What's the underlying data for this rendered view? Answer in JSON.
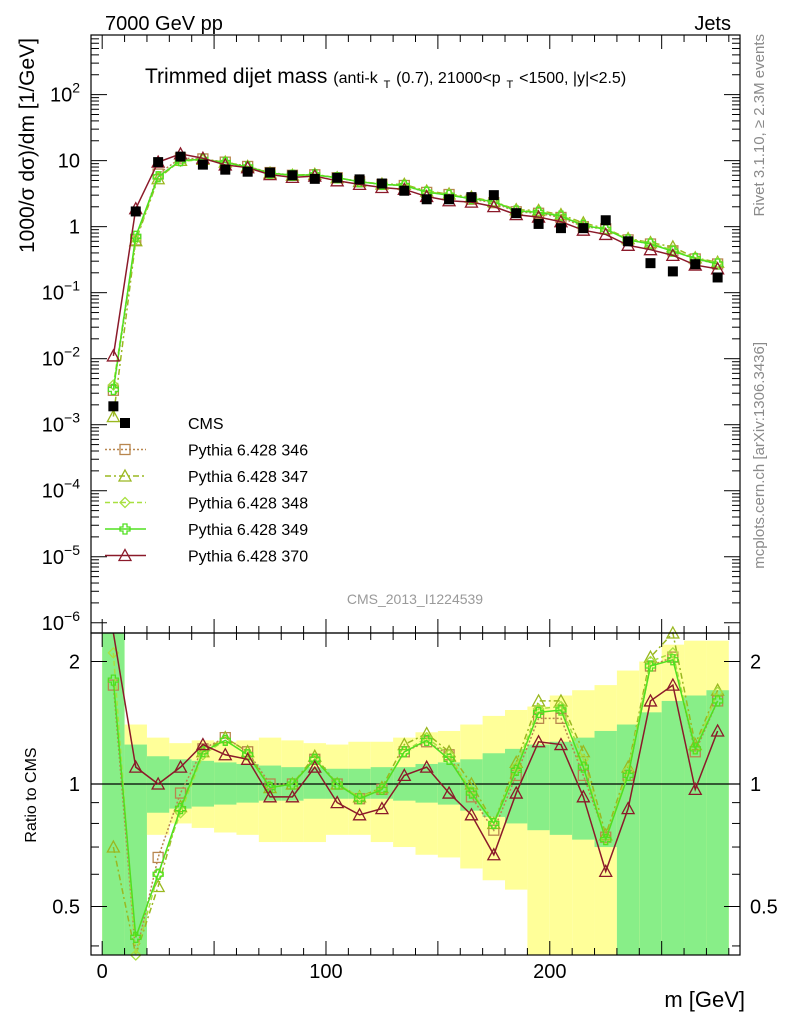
{
  "header": {
    "left": "7000 GeV pp",
    "right": "Jets"
  },
  "plot_title": {
    "main": "Trimmed dijet mass",
    "sub_prefix": "(anti-k",
    "sub_t1": "T",
    "sub_mid": "(0.7), 21000<p",
    "sub_t2": "T",
    "sub_suffix": "<1500, |y|<2.5)"
  },
  "side_labels": {
    "rivet": "Rivet 3.1.10, ≥ 2.3M events",
    "mcplots": "mcplots.cern.ch [arXiv:1306.3436]"
  },
  "watermark": "CMS_2013_I1224539",
  "axes": {
    "ylabel_main": "1000/σ dσ)/dm [1/GeV]",
    "ylabel_ratio": "Ratio to CMS",
    "xlabel": "m [GeV]",
    "x_ticks": [
      "0",
      "100",
      "200"
    ],
    "y_ticks_main": [
      {
        "base": "10",
        "exp": "2"
      },
      {
        "base": "10",
        "exp": ""
      },
      {
        "base": "1",
        "exp": ""
      },
      {
        "base": "10",
        "exp": "−1"
      },
      {
        "base": "10",
        "exp": "−2"
      },
      {
        "base": "10",
        "exp": "−3"
      },
      {
        "base": "10",
        "exp": "−4"
      },
      {
        "base": "10",
        "exp": "−5"
      },
      {
        "base": "10",
        "exp": "−6"
      }
    ],
    "y_ticks_ratio": [
      "2",
      "1",
      "0.5"
    ]
  },
  "legend": [
    {
      "label": "CMS",
      "color": "#000000"
    },
    {
      "label": "Pythia 6.428 346",
      "color": "#b8864e"
    },
    {
      "label": "Pythia 6.428 347",
      "color": "#9ab820"
    },
    {
      "label": "Pythia 6.428 348",
      "color": "#a8e040"
    },
    {
      "label": "Pythia 6.428 349",
      "color": "#50e020"
    },
    {
      "label": "Pythia 6.428 370",
      "color": "#8b1a2a"
    }
  ],
  "chart_data": {
    "type": "line",
    "title": "Trimmed dijet mass",
    "xlabel": "m [GeV]",
    "ylabel": "1000/σ dσ)/dm [1/GeV]",
    "xlim": [
      -5,
      285
    ],
    "ylim_main": [
      7e-07,
      800
    ],
    "ylog_main": true,
    "ylim_ratio": [
      0.38,
      2.35
    ],
    "ylog_ratio": true,
    "x": [
      5,
      15,
      25,
      35,
      45,
      55,
      65,
      75,
      85,
      95,
      105,
      115,
      125,
      135,
      145,
      155,
      165,
      175,
      185,
      195,
      205,
      215,
      225,
      235,
      245,
      255,
      265,
      275
    ],
    "data": [
      0.0019,
      1.7,
      9.5,
      11.5,
      8.7,
      7.3,
      6.8,
      6.6,
      6.0,
      5.3,
      5.5,
      5.2,
      4.5,
      3.5,
      2.6,
      2.6,
      2.8,
      3.0,
      1.6,
      1.1,
      0.95,
      0.95,
      1.25,
      0.6,
      0.28,
      0.21,
      0.27,
      0.17
    ],
    "band_inner": [
      [
        0.38,
        2.35
      ],
      [
        0.38,
        1.25
      ],
      [
        0.85,
        1.17
      ],
      [
        0.87,
        1.15
      ],
      [
        0.88,
        1.14
      ],
      [
        0.89,
        1.13
      ],
      [
        0.9,
        1.12
      ],
      [
        0.91,
        1.11
      ],
      [
        0.91,
        1.1
      ],
      [
        0.92,
        1.1
      ],
      [
        0.92,
        1.09
      ],
      [
        0.92,
        1.09
      ],
      [
        0.92,
        1.1
      ],
      [
        0.91,
        1.1
      ],
      [
        0.9,
        1.12
      ],
      [
        0.89,
        1.13
      ],
      [
        0.86,
        1.15
      ],
      [
        0.83,
        1.19
      ],
      [
        0.8,
        1.22
      ],
      [
        0.77,
        1.25
      ],
      [
        0.75,
        1.27
      ],
      [
        0.73,
        1.3
      ],
      [
        0.7,
        1.35
      ],
      [
        0.38,
        1.4
      ],
      [
        0.38,
        1.5
      ],
      [
        0.38,
        1.6
      ],
      [
        0.38,
        1.65
      ],
      [
        0.38,
        1.7
      ]
    ],
    "band_outer": [
      [
        0.38,
        2.35
      ],
      [
        0.38,
        1.4
      ],
      [
        0.75,
        1.3
      ],
      [
        0.8,
        1.26
      ],
      [
        0.78,
        1.28
      ],
      [
        0.76,
        1.27
      ],
      [
        0.75,
        1.28
      ],
      [
        0.72,
        1.3
      ],
      [
        0.72,
        1.28
      ],
      [
        0.72,
        1.26
      ],
      [
        0.75,
        1.25
      ],
      [
        0.75,
        1.27
      ],
      [
        0.72,
        1.27
      ],
      [
        0.7,
        1.3
      ],
      [
        0.67,
        1.34
      ],
      [
        0.66,
        1.35
      ],
      [
        0.62,
        1.4
      ],
      [
        0.58,
        1.47
      ],
      [
        0.55,
        1.52
      ],
      [
        0.38,
        1.55
      ],
      [
        0.38,
        1.65
      ],
      [
        0.38,
        1.7
      ],
      [
        0.38,
        1.75
      ],
      [
        0.38,
        1.9
      ],
      [
        0.38,
        2.0
      ],
      [
        0.38,
        2.2
      ],
      [
        0.38,
        2.25
      ],
      [
        0.38,
        2.25
      ]
    ],
    "series": [
      {
        "name": "Pythia 6.428 346",
        "color": "#b8864e",
        "dash": "2,2",
        "marker": "square",
        "ratio": [
          1.75,
          0.37,
          0.66,
          0.95,
          1.22,
          1.3,
          1.2,
          1.0,
          1.0,
          1.15,
          1.0,
          0.92,
          0.97,
          1.2,
          1.27,
          1.18,
          0.93,
          0.77,
          1.05,
          1.45,
          1.45,
          1.05,
          0.74,
          1.05,
          1.95,
          2.05,
          1.2,
          1.6
        ]
      },
      {
        "name": "Pythia 6.428 347",
        "color": "#9ab820",
        "dash": "6,3,2,3",
        "marker": "triangle",
        "ratio": [
          0.7,
          0.36,
          0.56,
          0.88,
          1.2,
          1.3,
          1.2,
          0.98,
          1.0,
          1.17,
          1.0,
          0.93,
          0.98,
          1.25,
          1.33,
          1.2,
          1.0,
          0.8,
          1.13,
          1.6,
          1.6,
          1.2,
          0.75,
          1.1,
          2.05,
          2.35,
          1.25,
          1.7
        ]
      },
      {
        "name": "Pythia 6.428 348",
        "color": "#a8e040",
        "dash": "5,3",
        "marker": "diamond",
        "ratio": [
          2.1,
          0.38,
          0.6,
          0.85,
          1.18,
          1.28,
          1.18,
          0.98,
          1.0,
          1.15,
          1.0,
          0.93,
          0.97,
          1.2,
          1.3,
          1.18,
          0.96,
          0.8,
          1.1,
          1.53,
          1.55,
          1.15,
          0.73,
          1.08,
          2.0,
          2.1,
          1.22,
          1.68
        ]
      },
      {
        "name": "Pythia 6.428 349",
        "color": "#50e020",
        "dash": "",
        "marker": "cross",
        "ratio": [
          1.8,
          0.42,
          0.6,
          0.87,
          1.2,
          1.28,
          1.18,
          0.98,
          1.0,
          1.15,
          1.0,
          0.92,
          0.97,
          1.2,
          1.28,
          1.15,
          0.95,
          0.8,
          1.08,
          1.5,
          1.52,
          1.1,
          0.73,
          1.05,
          1.95,
          2.02,
          1.22,
          1.6
        ]
      },
      {
        "name": "Pythia 6.428 370",
        "color": "#8b1a2a",
        "dash": "",
        "marker": "triangle",
        "ratio": [
          5.8,
          1.1,
          1.0,
          1.1,
          1.25,
          1.18,
          1.15,
          0.93,
          0.93,
          1.1,
          0.9,
          0.84,
          0.87,
          1.05,
          1.1,
          0.95,
          0.84,
          0.67,
          0.95,
          1.27,
          1.25,
          0.93,
          0.61,
          0.87,
          1.6,
          1.75,
          0.97,
          1.35
        ]
      }
    ]
  }
}
